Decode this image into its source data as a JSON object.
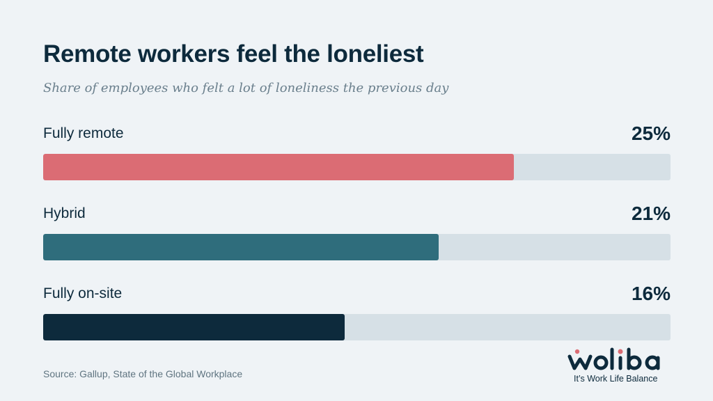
{
  "title": "Remote workers feel the loneliest",
  "subtitle": "Share of employees who felt a lot of loneliness the previous day",
  "chart_data": {
    "type": "bar",
    "orientation": "horizontal",
    "categories": [
      "Fully remote",
      "Hybrid",
      "Fully on-site"
    ],
    "values": [
      25,
      21,
      16
    ],
    "value_labels": [
      "25%",
      "21%",
      "16%"
    ],
    "xlim": [
      0,
      33.3
    ],
    "colors": [
      "#db6c74",
      "#2f6d7c",
      "#0d2a3c"
    ],
    "track_color": "#d6e0e6"
  },
  "source": "Source: Gallup, State of the Global Workplace",
  "logo": {
    "wordmark": "woliba",
    "tagline": "It’s Work Life Balance",
    "accent_color": "#db6c74",
    "text_color": "#0d2a3c"
  }
}
